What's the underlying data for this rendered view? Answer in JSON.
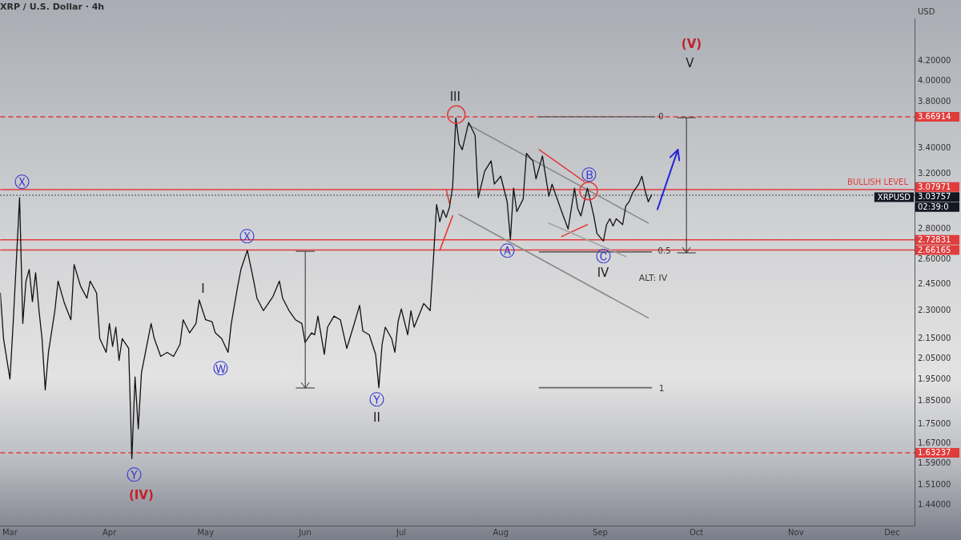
{
  "chart_data": {
    "type": "line",
    "title": "XRP / U.S. Dollar · 4h",
    "ylabel": "USD",
    "log": true,
    "xlim": [
      "--02-26",
      "--12-08"
    ],
    "xticks": [
      {
        "value": "--03-01",
        "label": "Mar"
      },
      {
        "value": "--04-01",
        "label": "Apr"
      },
      {
        "value": "--05-01",
        "label": "May"
      },
      {
        "value": "--06-01",
        "label": "Jun"
      },
      {
        "value": "--07-01",
        "label": "Jul"
      },
      {
        "value": "--08-01",
        "label": "Aug"
      },
      {
        "value": "--09-01",
        "label": "Sep"
      },
      {
        "value": "--10-01",
        "label": "Oct"
      },
      {
        "value": "--11-01",
        "label": "Nov"
      },
      {
        "value": "--12-01",
        "label": "Dec"
      }
    ],
    "ylim": [
      1.37,
      4.65
    ],
    "yticks": [
      {
        "value": 1.44,
        "label": "1.44000"
      },
      {
        "value": 1.51,
        "label": "1.51000"
      },
      {
        "value": 1.59,
        "label": "1.59000"
      },
      {
        "value": 1.67,
        "label": "1.67000"
      },
      {
        "value": 1.75,
        "label": "1.75000"
      },
      {
        "value": 1.85,
        "label": "1.85000"
      },
      {
        "value": 1.95,
        "label": "1.95000"
      },
      {
        "value": 2.05,
        "label": "2.05000"
      },
      {
        "value": 2.15,
        "label": "2.15000"
      },
      {
        "value": 2.3,
        "label": "2.30000"
      },
      {
        "value": 2.45,
        "label": "2.45000"
      },
      {
        "value": 2.6,
        "label": "2.60000"
      },
      {
        "value": 2.8,
        "label": "2.80000"
      },
      {
        "value": 3.2,
        "label": "3.20000"
      },
      {
        "value": 3.4,
        "label": "3.40000"
      },
      {
        "value": 3.8,
        "label": "3.80000"
      },
      {
        "value": 4.0,
        "label": "4.00000"
      },
      {
        "value": 4.2,
        "label": "4.20000"
      }
    ],
    "series": [
      {
        "color": "#111111",
        "x": [
          "--02-26",
          "--02-27",
          "--03-01",
          "--03-02",
          "--03-04",
          "--03-05",
          "--03-06",
          "--03-07",
          "--03-08",
          "--03-09",
          "--03-10",
          "--03-11",
          "--03-12",
          "--03-13",
          "--03-15",
          "--03-16",
          "--03-18",
          "--03-20",
          "--03-21",
          "--03-23",
          "--03-25",
          "--03-26",
          "--03-28",
          "--03-29",
          "--03-31",
          "--04-01",
          "--04-02",
          "--04-03",
          "--04-04",
          "--04-05",
          "--04-07",
          "--04-08",
          "--04-09",
          "--04-10",
          "--04-11",
          "--04-12",
          "--04-14",
          "--04-15",
          "--04-17",
          "--04-19",
          "--04-21",
          "--04-23",
          "--04-24",
          "--04-26",
          "--04-28",
          "--04-29",
          "--05-01",
          "--05-03",
          "--05-04",
          "--05-06",
          "--05-08",
          "--05-09",
          "--05-11",
          "--05-12",
          "--05-14",
          "--05-16",
          "--05-17",
          "--05-19",
          "--05-22",
          "--05-24",
          "--05-25",
          "--05-27",
          "--05-29",
          "--05-31",
          "--06-01",
          "--06-03",
          "--06-04",
          "--06-05",
          "--06-07",
          "--06-08",
          "--06-10",
          "--06-12",
          "--06-14",
          "--06-16",
          "--06-18",
          "--06-19",
          "--06-21",
          "--06-23",
          "--06-24",
          "--06-25",
          "--06-26",
          "--06-28",
          "--06-29",
          "--06-30",
          "--07-01",
          "--07-03",
          "--07-04",
          "--07-05",
          "--07-08",
          "--07-10",
          "--07-11",
          "--07-12",
          "--07-13",
          "--07-14",
          "--07-15",
          "--07-16",
          "--07-17",
          "--07-18",
          "--07-19",
          "--07-20",
          "--07-22",
          "--07-24",
          "--07-25",
          "--07-27",
          "--07-29",
          "--07-30",
          "--08-01",
          "--08-03",
          "--08-04",
          "--08-05",
          "--08-06",
          "--08-08",
          "--08-09",
          "--08-11",
          "--08-12",
          "--08-14",
          "--08-16",
          "--08-17",
          "--08-18",
          "--08-20",
          "--08-22",
          "--08-24",
          "--08-25",
          "--08-26",
          "--08-28",
          "--08-29",
          "--08-30",
          "--08-31",
          "--09-02",
          "--09-03",
          "--09-04",
          "--09-05",
          "--09-06",
          "--09-08",
          "--09-09",
          "--09-10",
          "--09-11",
          "--09-13",
          "--09-14",
          "--09-15",
          "--09-16",
          "--09-17"
        ],
        "values": [
          2.4,
          2.15,
          1.95,
          2.23,
          3.02,
          2.23,
          2.47,
          2.54,
          2.35,
          2.52,
          2.31,
          2.15,
          1.9,
          2.08,
          2.3,
          2.47,
          2.34,
          2.25,
          2.57,
          2.44,
          2.37,
          2.47,
          2.4,
          2.15,
          2.08,
          2.23,
          2.11,
          2.21,
          2.04,
          2.15,
          2.1,
          1.61,
          1.96,
          1.73,
          1.98,
          2.06,
          2.23,
          2.15,
          2.06,
          2.08,
          2.06,
          2.12,
          2.25,
          2.18,
          2.23,
          2.36,
          2.25,
          2.24,
          2.18,
          2.15,
          2.08,
          2.23,
          2.44,
          2.54,
          2.66,
          2.47,
          2.37,
          2.3,
          2.38,
          2.47,
          2.37,
          2.3,
          2.25,
          2.23,
          2.13,
          2.18,
          2.17,
          2.27,
          2.07,
          2.21,
          2.27,
          2.25,
          2.1,
          2.21,
          2.33,
          2.19,
          2.17,
          2.07,
          1.91,
          2.12,
          2.21,
          2.15,
          2.08,
          2.24,
          2.31,
          2.17,
          2.3,
          2.21,
          2.34,
          2.3,
          2.6,
          2.97,
          2.85,
          2.93,
          2.88,
          2.95,
          3.1,
          3.66,
          3.44,
          3.39,
          3.62,
          3.51,
          3.02,
          3.22,
          3.3,
          3.12,
          3.18,
          2.99,
          2.73,
          3.09,
          2.92,
          3.01,
          3.36,
          3.3,
          3.16,
          3.34,
          3.03,
          3.12,
          3.05,
          2.92,
          2.8,
          3.09,
          2.94,
          2.89,
          3.09,
          2.99,
          2.89,
          2.77,
          2.72,
          2.83,
          2.87,
          2.82,
          2.87,
          2.83,
          2.96,
          2.99,
          3.05,
          3.12,
          3.18,
          3.07,
          2.99,
          3.04
        ]
      },
      {
        "color": "#8a8a8a",
        "x": [
          "--07-22",
          "--09-16"
        ],
        "values": [
          3.6,
          2.84
        ]
      },
      {
        "color": "#8a8a8a",
        "x": [
          "--07-19",
          "--09-16"
        ],
        "values": [
          2.9,
          2.26
        ]
      },
      {
        "color": "#a3a3a3",
        "x": [
          "--08-16",
          "--09-09"
        ],
        "values": [
          2.84,
          2.62
        ]
      },
      {
        "color": "#e03c3c",
        "x": [
          "--08-13",
          "--08-27"
        ],
        "values": [
          3.39,
          3.14
        ]
      },
      {
        "color": "#e03c3c",
        "x": [
          "--08-20",
          "--08-28"
        ],
        "values": [
          2.75,
          2.83
        ]
      },
      {
        "color": "#e03c3c",
        "x": [
          "--07-15",
          "--07-16"
        ],
        "values": [
          3.08,
          2.98
        ]
      },
      {
        "color": "#e03c3c",
        "x": [
          "--07-13",
          "--07-17"
        ],
        "values": [
          2.66,
          2.89
        ]
      },
      {
        "color": "#666666",
        "x": [
          "--08-13",
          "--09-18"
        ],
        "values": [
          3.67,
          3.67
        ]
      },
      {
        "color": "#666666",
        "x": [
          "--08-13",
          "--09-17"
        ],
        "values": [
          2.65,
          2.65
        ]
      },
      {
        "color": "#666666",
        "x": [
          "--08-13",
          "--09-17"
        ],
        "values": [
          1.91,
          1.91
        ]
      }
    ],
    "ref_lines": [
      {
        "axis": "y",
        "value": 3.66914,
        "label": "3.66914",
        "color": "#e03c3c",
        "line_style": "dashed"
      },
      {
        "axis": "y",
        "value": 3.07971,
        "label": "3.07971",
        "color": "#e03c3c"
      },
      {
        "axis": "y",
        "value": 3.03757,
        "label": "3.03757",
        "color": "#131722",
        "line_style": "dotted"
      },
      {
        "axis": "y",
        "value": 2.72831,
        "label": "2.72831",
        "color": "#e03c3c"
      },
      {
        "axis": "y",
        "value": 2.66165,
        "label": "2.66165",
        "color": "#e03c3c"
      },
      {
        "axis": "y",
        "value": 1.63237,
        "label": "1.63237",
        "color": "#e03c3c",
        "line_style": "dashed"
      }
    ],
    "annotations": [
      "Ⓧ",
      "Ⓨ",
      "(IV)",
      "I",
      "Ⓦ",
      {
        "text": "Ⓧ",
        "x": "--05-14",
        "y": 2.74
      },
      "Ⓨ",
      "II",
      "III",
      {
        "text": "Ⓐ",
        "x": "--08-03",
        "y": 2.65
      },
      "Ⓑ",
      "Ⓒ",
      "IV",
      "ALT: IV",
      "(V)",
      "V",
      {
        "text": "0",
        "x": "--09-20",
        "y": 3.67
      },
      {
        "text": "0.5",
        "x": "--09-21",
        "y": 2.65
      },
      "1",
      "02:39:0",
      "BULLISH LEVEL",
      "XRPUSD"
    ]
  }
}
